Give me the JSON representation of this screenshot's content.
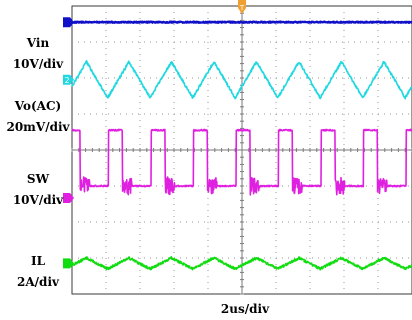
{
  "chart_data": {
    "type": "line",
    "title": "",
    "xlabel": "2us/div",
    "x_range_us": [
      0,
      20
    ],
    "grid": true,
    "channels": [
      {
        "name": "Vin",
        "scale": "10V/div",
        "color": "#1010c8",
        "marker": "",
        "shape": "dc",
        "level_div": 3.55
      },
      {
        "name": "Vo(AC)",
        "scale": "20mV/div",
        "color": "#20d8e0",
        "marker": "2",
        "shape": "triangle",
        "period_us": 2.5,
        "pp_div": 1.0,
        "center_div": 1.95
      },
      {
        "name": "SW",
        "scale": "10V/div",
        "color": "#e020e0",
        "marker": "",
        "shape": "pulse",
        "period_us": 2.5,
        "duty": 0.33,
        "low_div": -1.0,
        "high_div": 0.55
      },
      {
        "name": "IL",
        "scale": "2A/div",
        "color": "#10dc10",
        "marker": "",
        "shape": "triangle",
        "period_us": 2.5,
        "pp_div": 0.3,
        "center_div": -3.15
      }
    ],
    "trigger_marker": "T"
  }
}
